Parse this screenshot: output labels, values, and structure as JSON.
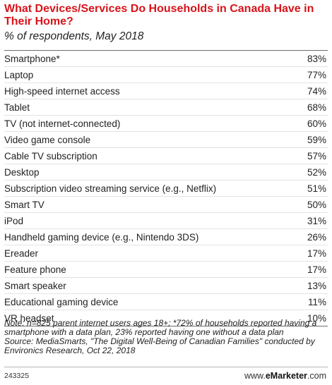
{
  "chart_data": {
    "type": "table",
    "title": "What Devices/Services Do Households in Canada Have in Their Home?",
    "subtitle": "% of respondents, May 2018",
    "rows": [
      {
        "label": "Smartphone*",
        "value": "83%"
      },
      {
        "label": "Laptop",
        "value": "77%"
      },
      {
        "label": "High-speed internet access",
        "value": "74%"
      },
      {
        "label": "Tablet",
        "value": "68%"
      },
      {
        "label": "TV (not internet-connected)",
        "value": "60%"
      },
      {
        "label": "Video game console",
        "value": "59%"
      },
      {
        "label": "Cable TV subscription",
        "value": "57%"
      },
      {
        "label": "Desktop",
        "value": "52%"
      },
      {
        "label": "Subscription video streaming service (e.g., Netflix)",
        "value": "51%"
      },
      {
        "label": "Smart TV",
        "value": "50%"
      },
      {
        "label": "iPod",
        "value": "31%"
      },
      {
        "label": "Handheld gaming device (e.g., Nintendo 3DS)",
        "value": "26%"
      },
      {
        "label": "Ereader",
        "value": "17%"
      },
      {
        "label": "Feature phone",
        "value": "17%"
      },
      {
        "label": "Smart speaker",
        "value": "13%"
      },
      {
        "label": "Educational gaming device",
        "value": "11%"
      },
      {
        "label": "VR headset",
        "value": "10%"
      }
    ],
    "note": "Note: n=825 parent internet users ages 18+; *72% of households reported having a smartphone with a data plan, 23% reported having one without a data plan",
    "source": "Source: MediaSmarts, \"The Digital Well-Being of Canadian Families\" conducted by Environics Research, Oct 22, 2018"
  },
  "footer": {
    "chart_id": "243325",
    "brand_prefix": "www.",
    "brand_name": "eMarketer",
    "brand_suffix": ".com"
  },
  "colors": {
    "title": "#d7141a",
    "rule": "#6d6d6d",
    "row_divider": "#e3e3e3"
  }
}
